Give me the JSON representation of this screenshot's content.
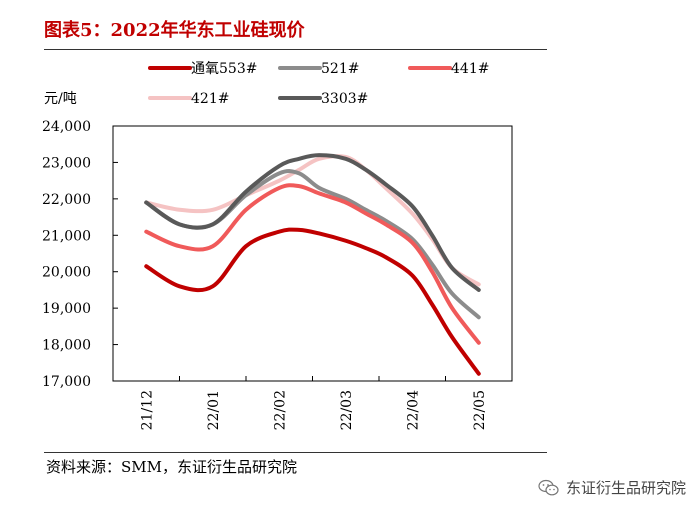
{
  "header": {
    "title": "图表5：2022年华东工业硅现价"
  },
  "footer": {
    "source": "资料来源：SMM，东证衍生品研究院",
    "watermark_text": "东证衍生品研究院",
    "watermark_icon": "wechat-icon"
  },
  "chart_data": {
    "type": "line",
    "title": "",
    "ylabel": "元/吨",
    "xlabel": "",
    "categories": [
      "21/12",
      "22/01",
      "22/02",
      "22/03",
      "22/04",
      "22/05"
    ],
    "x": [
      0,
      0.5,
      1,
      1.5,
      2,
      2.3,
      2.6,
      3,
      3.3,
      3.6,
      4,
      4.3,
      4.6,
      5
    ],
    "ylim": [
      17000,
      24000
    ],
    "yticks": [
      "17,000",
      "18,000",
      "19,000",
      "20,000",
      "21,000",
      "22,000",
      "23,000",
      "24,000"
    ],
    "grid": false,
    "legend_position": "top",
    "series": [
      {
        "name": "通氧553#",
        "color": "#c00000",
        "values": [
          20150,
          19600,
          19600,
          20700,
          21100,
          21150,
          21050,
          20850,
          20650,
          20400,
          19900,
          19100,
          18200,
          17200
        ]
      },
      {
        "name": "521#",
        "color": "#8c8c8c",
        "values": [
          21900,
          21300,
          21300,
          22100,
          22700,
          22700,
          22300,
          22000,
          21700,
          21400,
          20900,
          20200,
          19400,
          18750
        ]
      },
      {
        "name": "441#",
        "color": "#f05a5a",
        "values": [
          21100,
          20700,
          20700,
          21700,
          22300,
          22350,
          22150,
          21900,
          21600,
          21300,
          20800,
          20000,
          19000,
          18050
        ]
      },
      {
        "name": "421#",
        "color": "#f5c3c3",
        "values": [
          21900,
          21700,
          21700,
          22100,
          22500,
          22800,
          23100,
          23150,
          22800,
          22300,
          21600,
          20900,
          20100,
          19650
        ]
      },
      {
        "name": "3303#",
        "color": "#595959",
        "values": [
          21900,
          21300,
          21300,
          22200,
          22900,
          23100,
          23200,
          23100,
          22800,
          22400,
          21800,
          21000,
          20100,
          19500
        ]
      }
    ]
  }
}
